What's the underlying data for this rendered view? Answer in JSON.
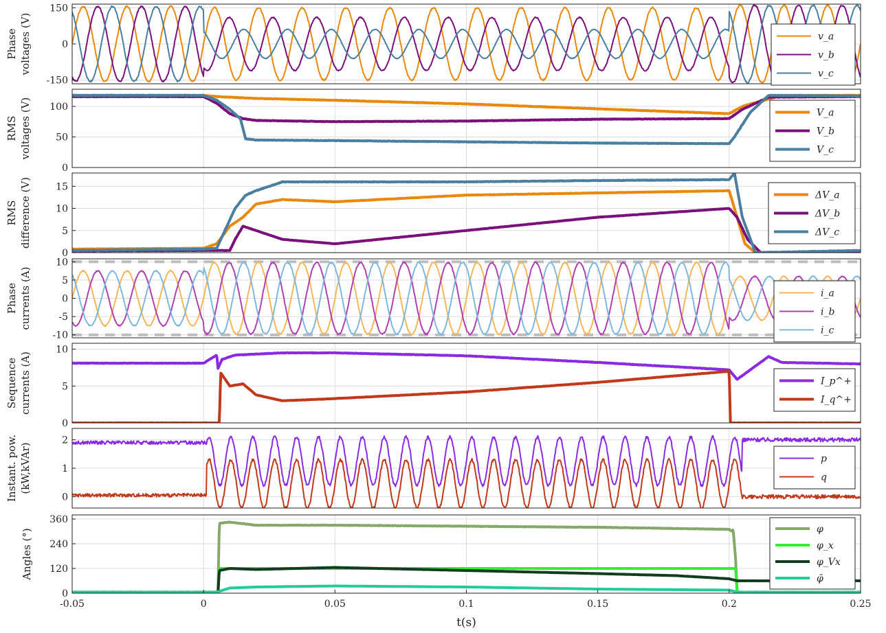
{
  "chart_data": {
    "type": "line",
    "x_axis": {
      "label": "t(s)",
      "range": [
        -0.05,
        0.25
      ],
      "ticks": [
        -0.05,
        0,
        0.05,
        0.1,
        0.15,
        0.2,
        0.25
      ],
      "tick_labels": [
        "-0.05",
        "0",
        "0.05",
        "0.1",
        "0.15",
        "0.2",
        "0.25"
      ]
    },
    "grid": true,
    "fault_window": [
      0.0,
      0.2
    ],
    "panels": [
      {
        "id": "phase-voltages",
        "ylabel": [
          "Phase",
          "voltages (V)"
        ],
        "ylim": [
          -165,
          165
        ],
        "yticks": [
          -150,
          0,
          150
        ],
        "ytick_labels": [
          "-150",
          "0",
          "150"
        ],
        "legend": "right",
        "series": [
          {
            "name": "v_a",
            "color": "#e8890c",
            "kind": "sine",
            "amp_pre": 155,
            "amp_fault": 150,
            "amp_post": 160,
            "phase_deg": 0,
            "freq_hz": 60
          },
          {
            "name": "v_b",
            "color": "#7b0f7b",
            "kind": "sine",
            "amp_pre": 155,
            "amp_fault": 110,
            "amp_post": 160,
            "phase_deg": -120,
            "freq_hz": 60
          },
          {
            "name": "v_c",
            "color": "#4a7fa0",
            "kind": "sine",
            "amp_pre": 155,
            "amp_fault": 60,
            "amp_post": 160,
            "phase_deg": 120,
            "freq_hz": 60
          }
        ]
      },
      {
        "id": "rms-voltages",
        "ylabel": [
          "RMS",
          "voltages (V)"
        ],
        "ylim": [
          0,
          128
        ],
        "yticks": [
          0,
          50,
          100
        ],
        "ytick_labels": [
          "0",
          "50",
          "100"
        ],
        "legend": "right",
        "series": [
          {
            "name": "V_a",
            "color": "#e8890c",
            "x": [
              -0.05,
              0,
              0.005,
              0.02,
              0.05,
              0.1,
              0.15,
              0.2,
              0.205,
              0.22,
              0.25
            ],
            "y": [
              118,
              118,
              116,
              113,
              110,
              104,
              96,
              88,
              100,
              118,
              118
            ]
          },
          {
            "name": "V_b",
            "color": "#7b0f7b",
            "x": [
              -0.05,
              0,
              0.005,
              0.01,
              0.015,
              0.02,
              0.05,
              0.1,
              0.15,
              0.2,
              0.205,
              0.215,
              0.25
            ],
            "y": [
              116,
              116,
              105,
              88,
              80,
              77,
              75,
              76,
              79,
              80,
              95,
              115,
              116
            ]
          },
          {
            "name": "V_c",
            "color": "#4a7fa0",
            "x": [
              -0.05,
              0,
              0.005,
              0.01,
              0.014,
              0.016,
              0.02,
              0.05,
              0.1,
              0.15,
              0.2,
              0.202,
              0.208,
              0.215,
              0.25
            ],
            "y": [
              118,
              118,
              110,
              95,
              80,
              47,
              45,
              44,
              42,
              40,
              39,
              50,
              90,
              118,
              117
            ]
          }
        ]
      },
      {
        "id": "rms-difference",
        "ylabel": [
          "RMS",
          "difference (V)"
        ],
        "ylim": [
          0,
          18
        ],
        "yticks": [
          0,
          5,
          10,
          15
        ],
        "ytick_labels": [
          "0",
          "5",
          "10",
          "15"
        ],
        "legend": "right",
        "series": [
          {
            "name": "ΔV_a",
            "color": "#e8890c",
            "x": [
              -0.05,
              0,
              0.005,
              0.01,
              0.015,
              0.02,
              0.03,
              0.05,
              0.1,
              0.15,
              0.2,
              0.203,
              0.206,
              0.21,
              0.25
            ],
            "y": [
              0.8,
              1,
              2,
              6,
              8,
              11,
              12,
              11.5,
              13,
              13.5,
              14,
              8,
              2,
              0,
              0
            ]
          },
          {
            "name": "ΔV_b",
            "color": "#7b0f7b",
            "x": [
              -0.05,
              0,
              0.01,
              0.012,
              0.015,
              0.02,
              0.03,
              0.05,
              0.1,
              0.15,
              0.2,
              0.203,
              0.207,
              0.212,
              0.25
            ],
            "y": [
              0.4,
              0.5,
              0.5,
              3,
              6,
              5,
              3,
              2,
              5,
              8,
              10,
              8,
              3,
              0,
              0
            ]
          },
          {
            "name": "ΔV_c",
            "color": "#4a7fa0",
            "x": [
              -0.05,
              0,
              0.005,
              0.012,
              0.016,
              0.02,
              0.03,
              0.05,
              0.1,
              0.15,
              0.2,
              0.202,
              0.205,
              0.21,
              0.25
            ],
            "y": [
              0.5,
              0.8,
              1,
              10,
              13,
              14,
              16,
              16,
              16,
              16.3,
              16.5,
              18,
              8,
              0,
              0.5
            ]
          }
        ]
      },
      {
        "id": "phase-currents",
        "ylabel": [
          "Phase",
          "currents (A)"
        ],
        "ylim": [
          -10.8,
          10.8
        ],
        "yticks": [
          -10,
          -5,
          0,
          5,
          10
        ],
        "ytick_labels": [
          "-10",
          "-5",
          "0",
          "5",
          "10"
        ],
        "limit_lines": [
          -10,
          10
        ],
        "legend": "right",
        "series": [
          {
            "name": "i_a",
            "color": "#f6b65a",
            "kind": "sine",
            "amp_pre": 7.5,
            "amp_fault": 9.8,
            "amp_post": 6,
            "phase_deg": 0,
            "freq_hz": 60
          },
          {
            "name": "i_b",
            "color": "#b040b0",
            "kind": "sine",
            "amp_pre": 7.5,
            "amp_fault": 9.8,
            "amp_post": 6,
            "phase_deg": -120,
            "freq_hz": 60
          },
          {
            "name": "i_c",
            "color": "#7fb8dc",
            "kind": "sine",
            "amp_pre": 7.5,
            "amp_fault": 9.8,
            "amp_post": 6,
            "phase_deg": 120,
            "freq_hz": 60
          }
        ]
      },
      {
        "id": "sequence-currents",
        "ylabel": [
          "Sequence",
          "currents (A)"
        ],
        "ylim": [
          0,
          10.8
        ],
        "yticks": [
          0,
          5,
          10
        ],
        "ytick_labels": [
          "0",
          "5",
          "10"
        ],
        "legend": "right",
        "series": [
          {
            "name": "I_p^+",
            "color": "#8a2be2",
            "x": [
              -0.05,
              0,
              0.005,
              0.0055,
              0.007,
              0.012,
              0.03,
              0.05,
              0.1,
              0.15,
              0.2,
              0.203,
              0.215,
              0.22,
              0.25
            ],
            "y": [
              8.1,
              8.1,
              9.2,
              7.4,
              8.6,
              9.2,
              9.5,
              9.5,
              9.1,
              8.2,
              7.2,
              5.9,
              9,
              8.2,
              8
            ]
          },
          {
            "name": "I_q^+",
            "color": "#c0391b",
            "x": [
              -0.05,
              0.006,
              0.0065,
              0.01,
              0.015,
              0.02,
              0.03,
              0.05,
              0.1,
              0.15,
              0.2,
              0.2005,
              0.25
            ],
            "y": [
              0,
              0,
              6.8,
              5,
              5.3,
              3.8,
              3,
              3.3,
              4.2,
              5.5,
              7,
              0,
              0
            ]
          }
        ]
      },
      {
        "id": "instantaneous-power",
        "ylabel": [
          "Instant. pow.",
          "(kW,kVAr)"
        ],
        "ylim": [
          -0.4,
          2.4
        ],
        "yticks": [
          0,
          1,
          2
        ],
        "ytick_labels": [
          "0",
          "1",
          "2"
        ],
        "legend": "right",
        "series": [
          {
            "name": "p",
            "color": "#8a2be2",
            "kind": "ripple",
            "pre": 1.9,
            "fault_mean": 1.25,
            "fault_amp": 0.85,
            "post": 2.0,
            "freq_hz": 120
          },
          {
            "name": "q",
            "color": "#c0391b",
            "kind": "ripple",
            "pre": 0.05,
            "fault_mean": 0.45,
            "fault_amp": 0.85,
            "post": 0.0,
            "freq_hz": 120
          }
        ]
      },
      {
        "id": "angles",
        "ylabel": [
          "Angles (°)"
        ],
        "ylim": [
          0,
          380
        ],
        "yticks": [
          0,
          120,
          240,
          360
        ],
        "ytick_labels": [
          "0",
          "120",
          "240",
          "360"
        ],
        "legend": "top-right",
        "series": [
          {
            "name": "φ",
            "color": "#86a86a",
            "x": [
              -0.05,
              0.0055,
              0.006,
              0.01,
              0.02,
              0.05,
              0.1,
              0.15,
              0.2,
              0.201,
              0.2015,
              0.2025,
              0.203,
              0.25
            ],
            "y": [
              5,
              5,
              340,
              345,
              330,
              330,
              325,
              320,
              310,
              300,
              310,
              160,
              5,
              5
            ]
          },
          {
            "name": "φ_x",
            "color": "#33ee33",
            "x": [
              -0.05,
              0.0055,
              0.006,
              0.2025,
              0.203,
              0.25
            ],
            "y": [
              5,
              5,
              120,
              120,
              5,
              5
            ]
          },
          {
            "name": "φ_Vx",
            "color": "#123c1e",
            "x": [
              -0.05,
              0.0055,
              0.006,
              0.01,
              0.02,
              0.05,
              0.1,
              0.15,
              0.18,
              0.2,
              0.203,
              0.25
            ],
            "y": [
              5,
              5,
              110,
              120,
              115,
              125,
              110,
              95,
              85,
              70,
              60,
              60
            ]
          },
          {
            "name": "φ̄",
            "color": "#22cc99",
            "x": [
              -0.05,
              0.005,
              0.01,
              0.02,
              0.05,
              0.1,
              0.15,
              0.2,
              0.203,
              0.25
            ],
            "y": [
              5,
              5,
              25,
              30,
              35,
              30,
              20,
              15,
              5,
              5
            ]
          }
        ]
      }
    ]
  }
}
